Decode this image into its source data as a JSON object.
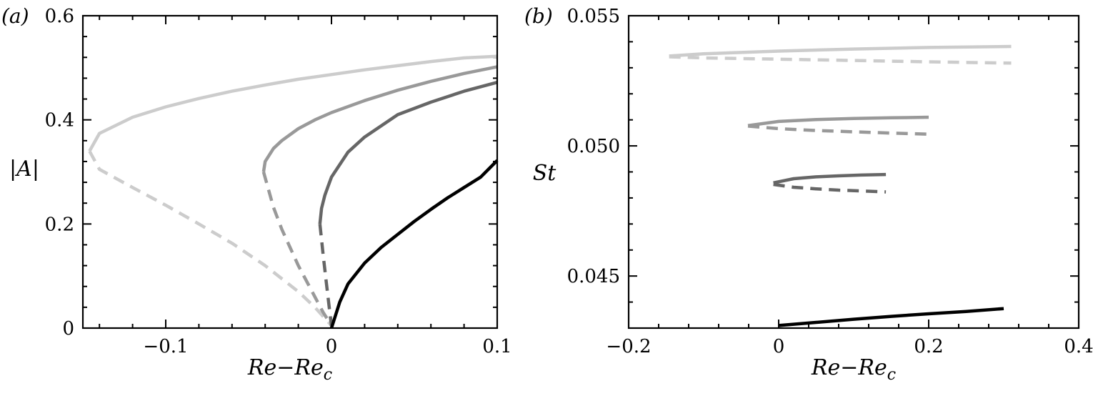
{
  "chart_data": [
    {
      "panel_label": "(a)",
      "type": "line",
      "xlabel": "Re−Re_c",
      "ylabel": "|A|",
      "xlim": [
        -0.15,
        0.1
      ],
      "ylim": [
        0,
        0.6
      ],
      "xticks": [
        -0.1,
        0,
        0.1
      ],
      "xtick_labels": [
        "−0.1",
        "0",
        "0.1"
      ],
      "yticks": [
        0,
        0.2,
        0.4,
        0.6
      ],
      "ytick_labels": [
        "0",
        "0.2",
        "0.4",
        "0.6"
      ],
      "grid": false,
      "series": [
        {
          "color": "#cccccc",
          "style": "solid",
          "x": [
            -0.146,
            -0.14,
            -0.12,
            -0.1,
            -0.08,
            -0.06,
            -0.04,
            -0.02,
            0.0,
            0.02,
            0.04,
            0.06,
            0.08,
            0.1
          ],
          "y": [
            0.34,
            0.374,
            0.405,
            0.425,
            0.441,
            0.455,
            0.467,
            0.478,
            0.487,
            0.496,
            0.504,
            0.512,
            0.519,
            0.522
          ]
        },
        {
          "color": "#cccccc",
          "style": "dashed",
          "x": [
            -0.146,
            -0.14,
            -0.12,
            -0.1,
            -0.08,
            -0.06,
            -0.04,
            -0.02,
            -0.01,
            0.0
          ],
          "y": [
            0.34,
            0.305,
            0.27,
            0.236,
            0.2,
            0.163,
            0.12,
            0.07,
            0.04,
            0.005
          ]
        },
        {
          "color": "#999999",
          "style": "solid",
          "x": [
            -0.041,
            -0.04,
            -0.035,
            -0.03,
            -0.02,
            -0.01,
            0.0,
            0.02,
            0.04,
            0.06,
            0.08,
            0.1
          ],
          "y": [
            0.3,
            0.32,
            0.345,
            0.36,
            0.383,
            0.4,
            0.414,
            0.437,
            0.457,
            0.474,
            0.489,
            0.502
          ]
        },
        {
          "color": "#999999",
          "style": "dashed",
          "x": [
            -0.041,
            -0.035,
            -0.03,
            -0.02,
            -0.01,
            -0.005,
            0.0
          ],
          "y": [
            0.3,
            0.232,
            0.19,
            0.12,
            0.06,
            0.03,
            0.005
          ]
        },
        {
          "color": "#666666",
          "style": "solid",
          "x": [
            -0.007,
            -0.006,
            -0.004,
            -0.002,
            0.0,
            0.01,
            0.02,
            0.04,
            0.06,
            0.08,
            0.1
          ],
          "y": [
            0.2,
            0.23,
            0.255,
            0.273,
            0.29,
            0.338,
            0.367,
            0.41,
            0.434,
            0.455,
            0.472
          ]
        },
        {
          "color": "#666666",
          "style": "dashed",
          "x": [
            -0.007,
            -0.005,
            -0.003,
            -0.001,
            0.0
          ],
          "y": [
            0.2,
            0.14,
            0.085,
            0.03,
            0.005
          ]
        },
        {
          "color": "#000000",
          "style": "solid",
          "x": [
            0.0,
            0.005,
            0.01,
            0.02,
            0.03,
            0.04,
            0.05,
            0.06,
            0.07,
            0.08,
            0.09,
            0.1
          ],
          "y": [
            0.0,
            0.05,
            0.085,
            0.125,
            0.155,
            0.18,
            0.205,
            0.228,
            0.25,
            0.27,
            0.29,
            0.322
          ]
        }
      ]
    },
    {
      "panel_label": "(b)",
      "type": "line",
      "xlabel": "Re−Re_c",
      "ylabel": "St",
      "xlim": [
        -0.2,
        0.4
      ],
      "ylim": [
        0.043,
        0.055
      ],
      "xticks": [
        -0.2,
        0,
        0.2,
        0.4
      ],
      "xtick_labels": [
        "−0.2",
        "0",
        "0.2",
        "0.4"
      ],
      "yticks": [
        0.045,
        0.05,
        0.055
      ],
      "ytick_labels": [
        "0.045",
        "0.050",
        "0.055"
      ],
      "grid": false,
      "series": [
        {
          "color": "#cccccc",
          "style": "solid",
          "x": [
            -0.146,
            -0.1,
            0.0,
            0.1,
            0.2,
            0.31
          ],
          "y": [
            0.05345,
            0.05354,
            0.05364,
            0.05372,
            0.05378,
            0.05382
          ]
        },
        {
          "color": "#cccccc",
          "style": "dashed",
          "x": [
            -0.146,
            -0.1,
            0.0,
            0.1,
            0.2,
            0.31
          ],
          "y": [
            0.05342,
            0.05338,
            0.05333,
            0.05328,
            0.05323,
            0.05318
          ]
        },
        {
          "color": "#999999",
          "style": "solid",
          "x": [
            -0.041,
            0.0,
            0.05,
            0.1,
            0.15,
            0.2
          ],
          "y": [
            0.05078,
            0.05094,
            0.05101,
            0.05105,
            0.05108,
            0.0511
          ]
        },
        {
          "color": "#999999",
          "style": "dashed",
          "x": [
            -0.041,
            0.0,
            0.05,
            0.1,
            0.15,
            0.2
          ],
          "y": [
            0.05076,
            0.05066,
            0.05059,
            0.05054,
            0.05049,
            0.05045
          ]
        },
        {
          "color": "#666666",
          "style": "solid",
          "x": [
            -0.007,
            0.02,
            0.05,
            0.08,
            0.11,
            0.143
          ],
          "y": [
            0.04858,
            0.04874,
            0.04881,
            0.04885,
            0.04888,
            0.0489
          ]
        },
        {
          "color": "#666666",
          "style": "dashed",
          "x": [
            -0.007,
            0.02,
            0.05,
            0.08,
            0.11,
            0.143
          ],
          "y": [
            0.04852,
            0.04841,
            0.04835,
            0.0483,
            0.04827,
            0.04823
          ]
        },
        {
          "color": "#000000",
          "style": "solid",
          "x": [
            0.0,
            0.05,
            0.1,
            0.15,
            0.2,
            0.25,
            0.3
          ],
          "y": [
            0.0431,
            0.04322,
            0.04334,
            0.04345,
            0.04355,
            0.04364,
            0.04375
          ]
        }
      ]
    }
  ]
}
